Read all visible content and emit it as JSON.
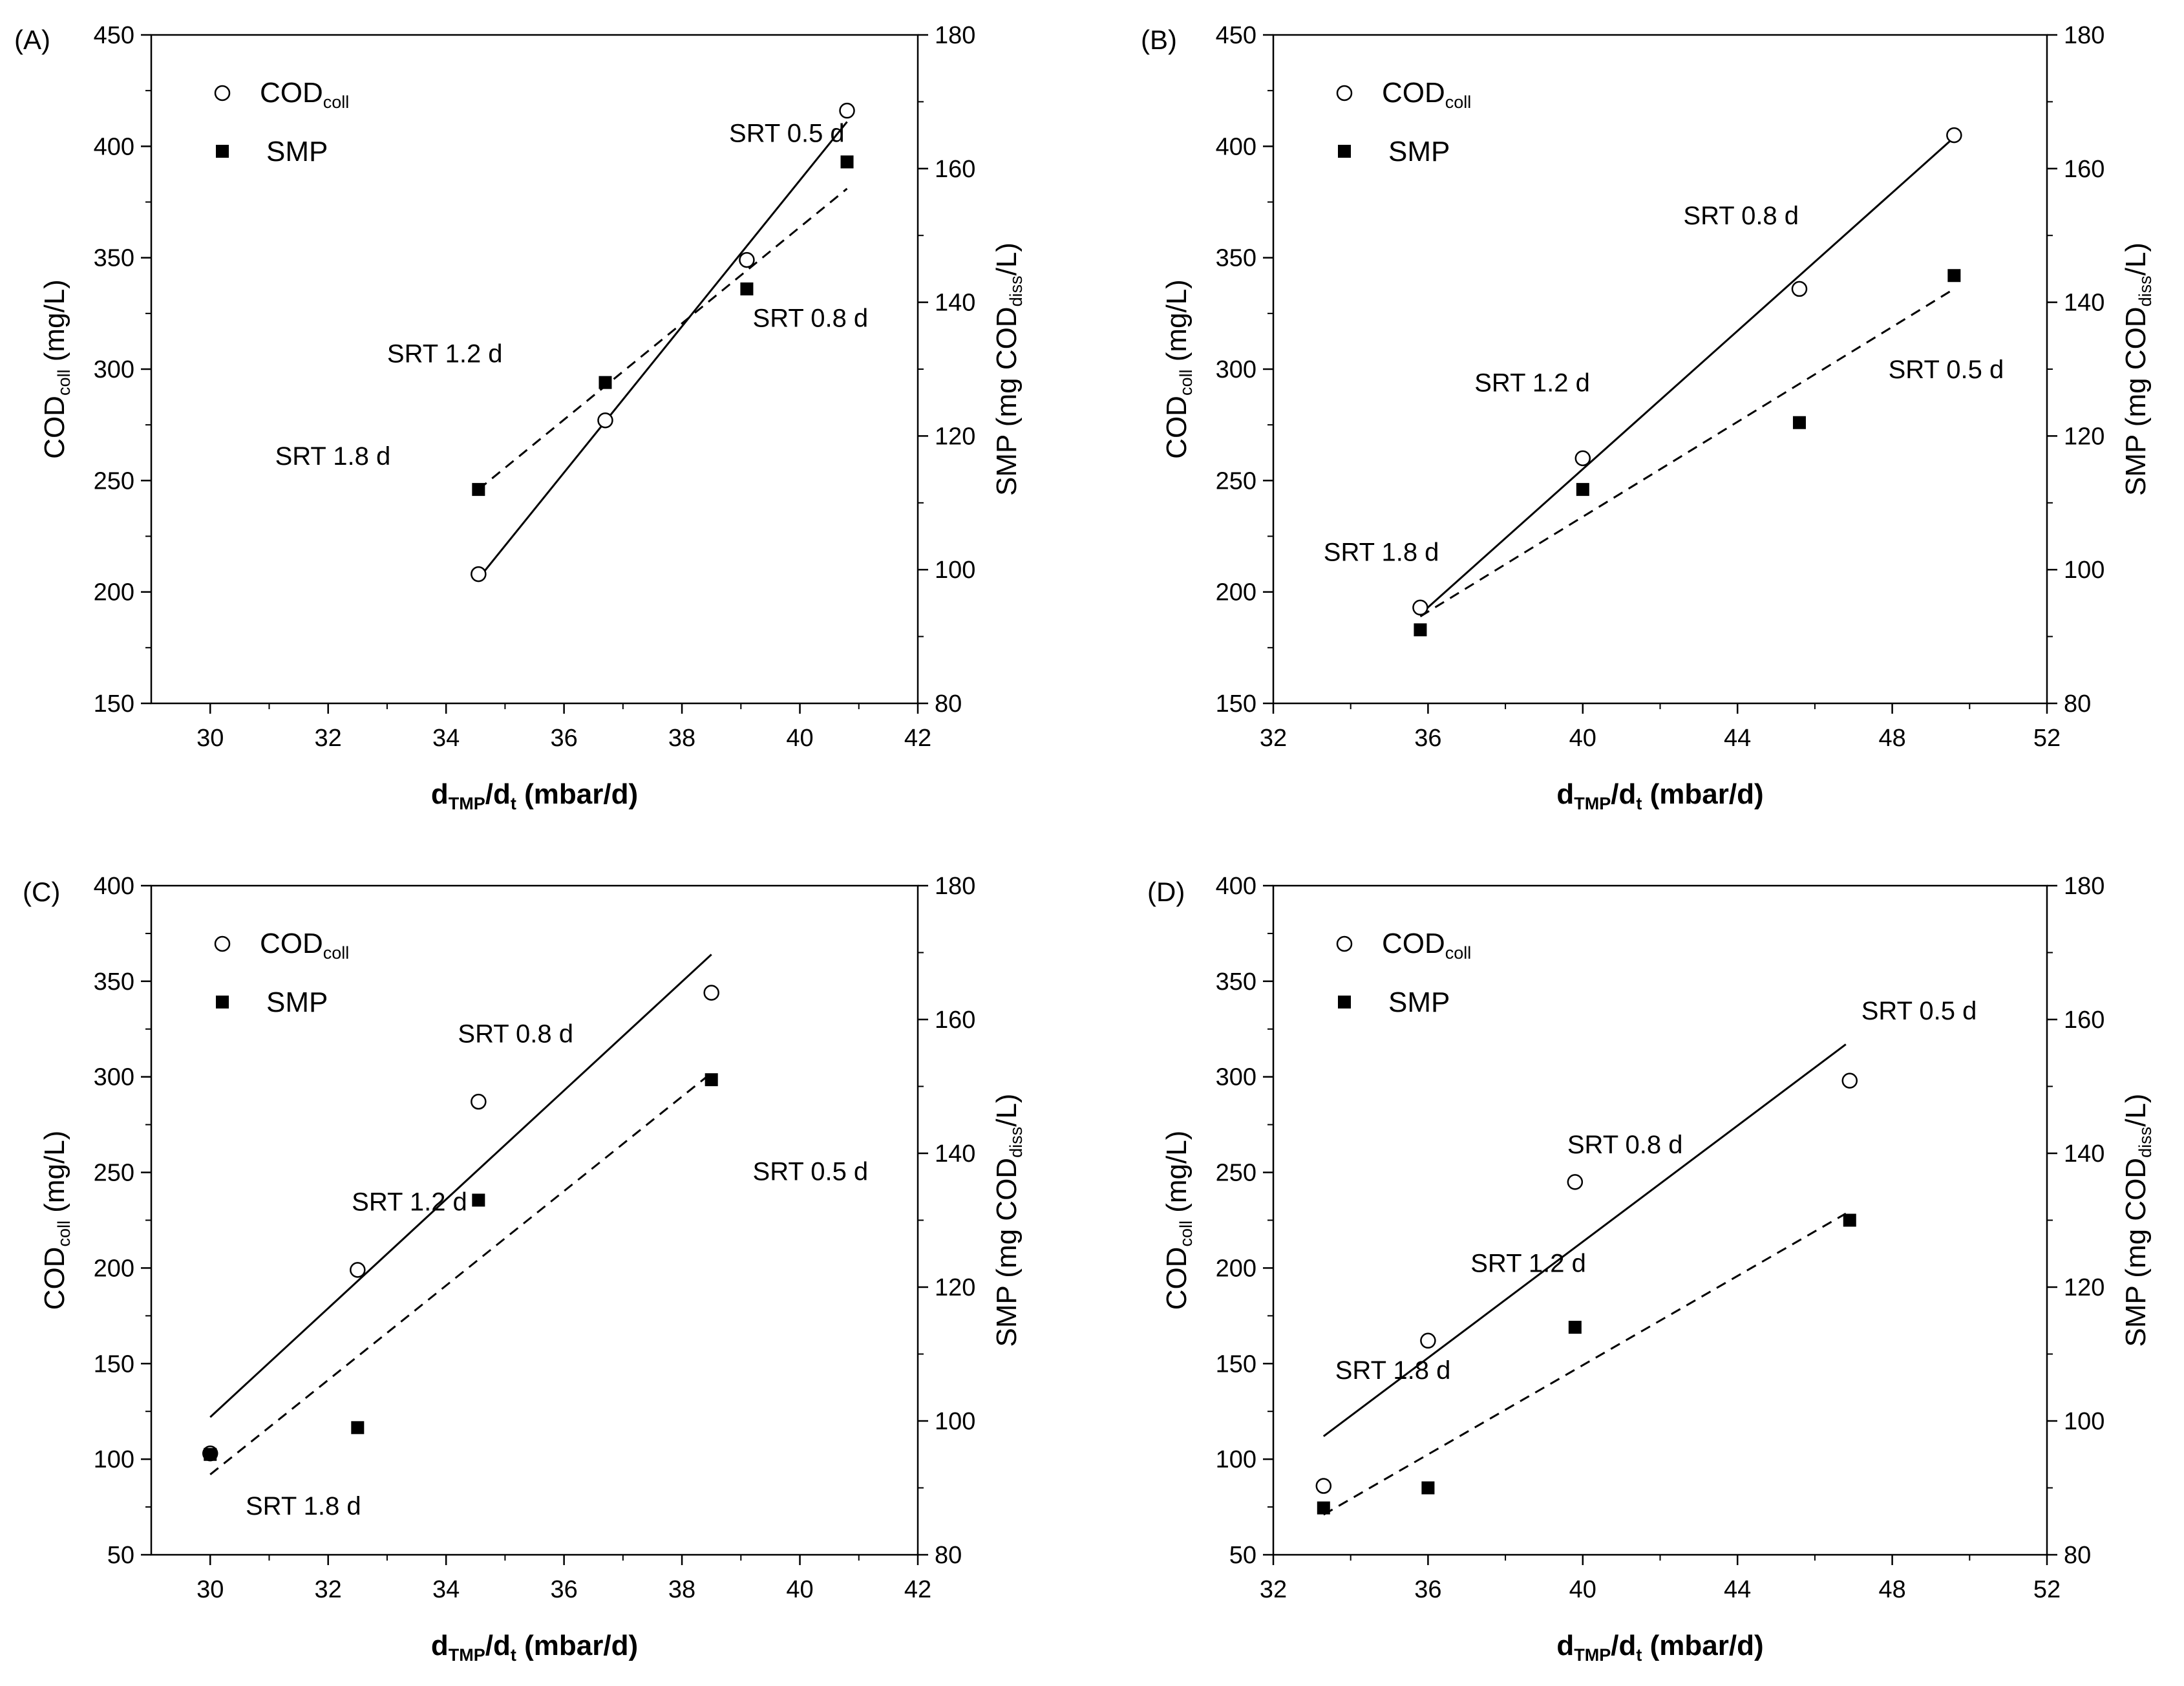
{
  "figure": {
    "type": "scatter",
    "panel_count": 4
  },
  "chart_data": [
    {
      "type": "scatter",
      "panel_label": "(A)",
      "xlabel": {
        "d": "d",
        "d_sub": "TMP",
        "slash": "/d",
        "t_sub": "t",
        "units": " (mbar/d)"
      },
      "ylabel_left": {
        "main": "COD",
        "sub": "coll",
        "units": " (mg/L)"
      },
      "ylabel_right": {
        "pre": "SMP (mg COD",
        "sub": "diss",
        "post": "/L)"
      },
      "xlim": [
        29,
        42
      ],
      "xticks": [
        30,
        32,
        34,
        36,
        38,
        40,
        42
      ],
      "ylim_left": [
        150,
        450
      ],
      "yticks_left": [
        150,
        200,
        250,
        300,
        350,
        400,
        450
      ],
      "ylim_right": [
        80,
        180
      ],
      "yticks_right": [
        80,
        100,
        120,
        140,
        160,
        180
      ],
      "legend": {
        "position": "top-left",
        "cod": {
          "main": "COD",
          "sub": "coll"
        },
        "smp": "SMP"
      },
      "series": [
        {
          "name": "COD_coll",
          "axis": "left",
          "marker": "open-circle",
          "x": [
            34.55,
            36.7,
            39.1,
            40.8
          ],
          "y": [
            208,
            277,
            349,
            416
          ]
        },
        {
          "name": "SMP",
          "axis": "right",
          "marker": "filled-square",
          "x": [
            34.55,
            36.7,
            39.1,
            40.8
          ],
          "y": [
            112,
            128,
            142,
            161
          ]
        }
      ],
      "fits": [
        {
          "name": "COD_coll fit",
          "axis": "left",
          "style": "solid",
          "x": [
            34.55,
            40.8
          ],
          "y": [
            206,
            411
          ]
        },
        {
          "name": "SMP fit",
          "axis": "right",
          "style": "dashed",
          "x": [
            34.55,
            40.8
          ],
          "y": [
            112,
            157
          ]
        }
      ],
      "annotations": [
        {
          "text": "SRT 0.5 d",
          "x": 38.8,
          "y": 402
        },
        {
          "text": "SRT 1.2 d",
          "x": 33.0,
          "y": 303
        },
        {
          "text": "SRT 0.8 d",
          "x": 39.2,
          "y": 319
        },
        {
          "text": "SRT 1.8 d",
          "x": 31.1,
          "y": 257
        }
      ]
    },
    {
      "type": "scatter",
      "panel_label": "(B)",
      "xlabel": {
        "d": "d",
        "d_sub": "TMP",
        "slash": "/d",
        "t_sub": "t",
        "units": " (mbar/d)"
      },
      "ylabel_left": {
        "main": "COD",
        "sub": "coll",
        "units": " (mg/L)"
      },
      "ylabel_right": {
        "pre": "SMP (mg COD",
        "sub": "diss",
        "post": "/L)"
      },
      "xlim": [
        32,
        52
      ],
      "xticks": [
        32,
        36,
        40,
        44,
        48,
        52
      ],
      "ylim_left": [
        150,
        450
      ],
      "yticks_left": [
        150,
        200,
        250,
        300,
        350,
        400,
        450
      ],
      "ylim_right": [
        80,
        180
      ],
      "yticks_right": [
        80,
        100,
        120,
        140,
        160,
        180
      ],
      "legend": {
        "position": "top-left",
        "cod": {
          "main": "COD",
          "sub": "coll"
        },
        "smp": "SMP"
      },
      "series": [
        {
          "name": "COD_coll",
          "axis": "left",
          "marker": "open-circle",
          "x": [
            35.8,
            40.0,
            45.6,
            49.6
          ],
          "y": [
            193,
            260,
            336,
            405
          ]
        },
        {
          "name": "SMP",
          "axis": "right",
          "marker": "filled-square",
          "x": [
            35.8,
            40.0,
            45.6,
            49.6
          ],
          "y": [
            91,
            112,
            122,
            144
          ]
        }
      ],
      "fits": [
        {
          "name": "COD_coll fit",
          "axis": "left",
          "style": "solid",
          "x": [
            35.8,
            49.6
          ],
          "y": [
            190,
            404
          ]
        },
        {
          "name": "SMP fit",
          "axis": "right",
          "style": "dashed",
          "x": [
            35.8,
            49.6
          ],
          "y": [
            93,
            142
          ]
        }
      ],
      "annotations": [
        {
          "text": "SRT 0.8 d",
          "x": 42.6,
          "y": 365
        },
        {
          "text": "SRT 1.2 d",
          "x": 37.2,
          "y": 290
        },
        {
          "text": "SRT 0.5 d",
          "x": 47.9,
          "y": 296
        },
        {
          "text": "SRT 1.8 d",
          "x": 33.3,
          "y": 214
        }
      ]
    },
    {
      "type": "scatter",
      "panel_label": "(C)",
      "xlabel": {
        "d": "d",
        "d_sub": "TMP",
        "slash": "/d",
        "t_sub": "t",
        "units": " (mbar/d)"
      },
      "ylabel_left": {
        "main": "COD",
        "sub": "coll",
        "units": " (mg/L)"
      },
      "ylabel_right": {
        "pre": "SMP (mg COD",
        "sub": "diss",
        "post": "/L)"
      },
      "xlim": [
        29,
        42
      ],
      "xticks": [
        30,
        32,
        34,
        36,
        38,
        40,
        42
      ],
      "ylim_left": [
        50,
        400
      ],
      "yticks_left": [
        50,
        100,
        150,
        200,
        250,
        300,
        350,
        400
      ],
      "ylim_right": [
        80,
        180
      ],
      "yticks_right": [
        80,
        100,
        120,
        140,
        160,
        180
      ],
      "legend": {
        "position": "top-left",
        "cod": {
          "main": "COD",
          "sub": "coll"
        },
        "smp": "SMP"
      },
      "series": [
        {
          "name": "COD_coll",
          "axis": "left",
          "marker": "open-circle",
          "x": [
            30.0,
            32.5,
            34.55,
            38.5
          ],
          "y": [
            103,
            199,
            287,
            344
          ]
        },
        {
          "name": "SMP",
          "axis": "right",
          "marker": "filled-square",
          "x": [
            30.0,
            32.5,
            34.55,
            38.5
          ],
          "y": [
            95,
            99,
            133,
            151
          ]
        }
      ],
      "fits": [
        {
          "name": "COD_coll fit",
          "axis": "left",
          "style": "solid",
          "x": [
            30.0,
            38.5
          ],
          "y": [
            122,
            364
          ]
        },
        {
          "name": "SMP fit",
          "axis": "right",
          "style": "dashed",
          "x": [
            30.0,
            38.5
          ],
          "y": [
            92,
            152
          ]
        }
      ],
      "annotations": [
        {
          "text": "SRT 0.8 d",
          "x": 34.2,
          "y": 318
        },
        {
          "text": "SRT 1.2 d",
          "x": 32.4,
          "y": 230
        },
        {
          "text": "SRT 0.5 d",
          "x": 39.2,
          "y": 246
        },
        {
          "text": "SRT 1.8 d",
          "x": 30.6,
          "y": 71
        }
      ]
    },
    {
      "type": "scatter",
      "panel_label": "(D)",
      "xlabel": {
        "d": "d",
        "d_sub": "TMP",
        "slash": "/d",
        "t_sub": "t",
        "units": " (mbar/d)"
      },
      "ylabel_left": {
        "main": "COD",
        "sub": "coll",
        "units": " (mg/L)"
      },
      "ylabel_right": {
        "pre": "SMP (mg COD",
        "sub": "diss",
        "post": "/L)"
      },
      "xlim": [
        32,
        52
      ],
      "xticks": [
        32,
        36,
        40,
        44,
        48,
        52
      ],
      "ylim_left": [
        50,
        400
      ],
      "yticks_left": [
        50,
        100,
        150,
        200,
        250,
        300,
        350,
        400
      ],
      "ylim_right": [
        80,
        180
      ],
      "yticks_right": [
        80,
        100,
        120,
        140,
        160,
        180
      ],
      "legend": {
        "position": "top-left",
        "cod": {
          "main": "COD",
          "sub": "coll"
        },
        "smp": "SMP"
      },
      "series": [
        {
          "name": "COD_coll",
          "axis": "left",
          "marker": "open-circle",
          "x": [
            33.3,
            36.0,
            39.8,
            46.9
          ],
          "y": [
            86,
            162,
            245,
            298
          ]
        },
        {
          "name": "SMP",
          "axis": "right",
          "marker": "filled-square",
          "x": [
            33.3,
            36.0,
            39.8,
            46.9
          ],
          "y": [
            87,
            90,
            114,
            130
          ]
        }
      ],
      "fits": [
        {
          "name": "COD_coll fit",
          "axis": "left",
          "style": "solid",
          "x": [
            33.3,
            46.8
          ],
          "y": [
            112,
            317
          ]
        },
        {
          "name": "SMP fit",
          "axis": "right",
          "style": "dashed",
          "x": [
            33.3,
            46.8
          ],
          "y": [
            86,
            131
          ]
        }
      ],
      "annotations": [
        {
          "text": "SRT 0.5 d",
          "x": 47.2,
          "y": 330
        },
        {
          "text": "SRT 0.8 d",
          "x": 39.6,
          "y": 260
        },
        {
          "text": "SRT 1.2 d",
          "x": 37.1,
          "y": 198
        },
        {
          "text": "SRT 1.8 d",
          "x": 33.6,
          "y": 142
        }
      ]
    }
  ]
}
